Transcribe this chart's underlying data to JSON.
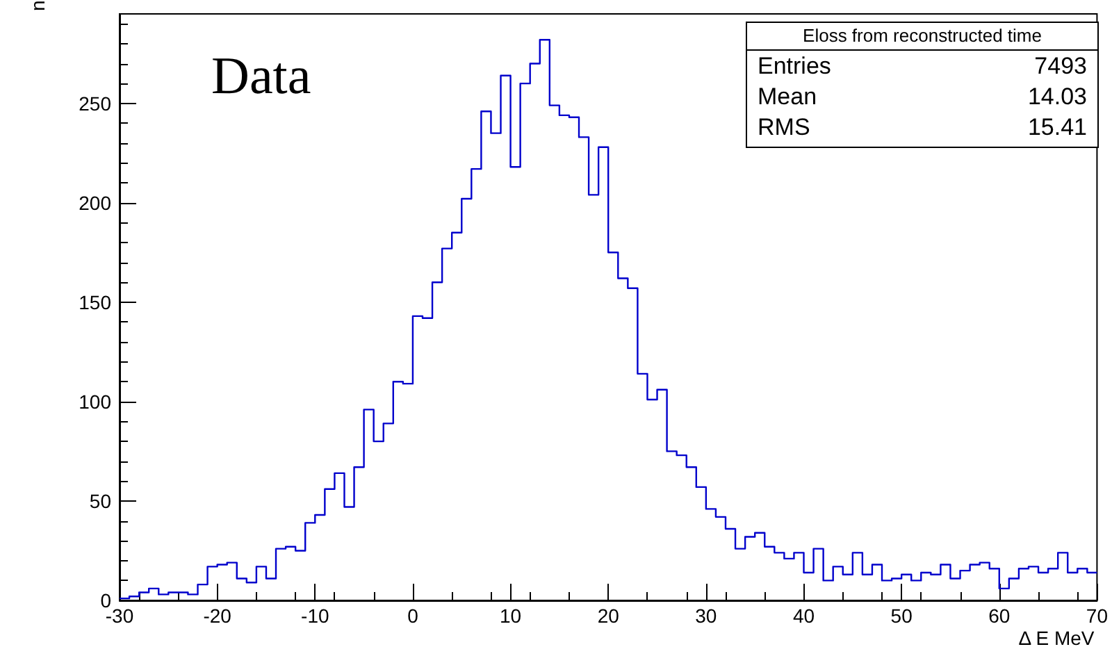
{
  "chart_data": {
    "type": "histogram",
    "xlabel": "Δ E MeV",
    "ylabel": "n",
    "bins": [
      -30,
      -29,
      -28,
      -27,
      -26,
      -25,
      -24,
      -23,
      -22,
      -21,
      -20,
      -19,
      -18,
      -17,
      -16,
      -15,
      -14,
      -13,
      -12,
      -11,
      -10,
      -9,
      -8,
      -7,
      -6,
      -5,
      -4,
      -3,
      -2,
      -1,
      0,
      1,
      2,
      3,
      4,
      5,
      6,
      7,
      8,
      9,
      10,
      11,
      12,
      13,
      14,
      15,
      16,
      17,
      18,
      19,
      20,
      21,
      22,
      23,
      24,
      25,
      26,
      27,
      28,
      29,
      30,
      31,
      32,
      33,
      34,
      35,
      36,
      37,
      38,
      39,
      40,
      41,
      42,
      43,
      44,
      45,
      46,
      47,
      48,
      49,
      50,
      51,
      52,
      53,
      54,
      55,
      56,
      57,
      58,
      59,
      60,
      61,
      62,
      63,
      64,
      65,
      66,
      67,
      68,
      69,
      70
    ],
    "values": [
      1,
      2,
      4,
      6,
      3,
      4,
      4,
      3,
      8,
      17,
      18,
      19,
      11,
      9,
      17,
      11,
      26,
      27,
      25,
      39,
      43,
      56,
      64,
      47,
      67,
      96,
      80,
      89,
      110,
      109,
      143,
      142,
      160,
      177,
      185,
      202,
      217,
      246,
      235,
      264,
      218,
      260,
      270,
      282,
      249,
      244,
      243,
      233,
      204,
      228,
      175,
      162,
      157,
      114,
      101,
      106,
      75,
      73,
      67,
      57,
      46,
      42,
      36,
      26,
      32,
      34,
      27,
      24,
      21,
      24,
      14,
      26,
      10,
      17,
      13,
      24,
      13,
      18,
      10,
      11,
      13,
      10,
      14,
      13,
      18,
      11,
      15,
      18,
      19,
      16,
      6,
      11,
      16,
      17,
      14,
      16,
      24,
      14,
      16,
      14
    ],
    "color": "#0000cc",
    "xlim": [
      -30,
      70
    ],
    "xticks": [
      -30,
      -20,
      -10,
      0,
      10,
      20,
      30,
      40,
      50,
      60,
      70
    ],
    "ylim": [
      0,
      295
    ],
    "yticks": [
      0,
      50,
      100,
      150,
      200,
      250
    ],
    "grid": false,
    "annotations": [
      "Data",
      "Eloss from reconstructed time",
      "Entries",
      "7493",
      "Mean",
      "14.03",
      "RMS",
      "15.41"
    ]
  }
}
